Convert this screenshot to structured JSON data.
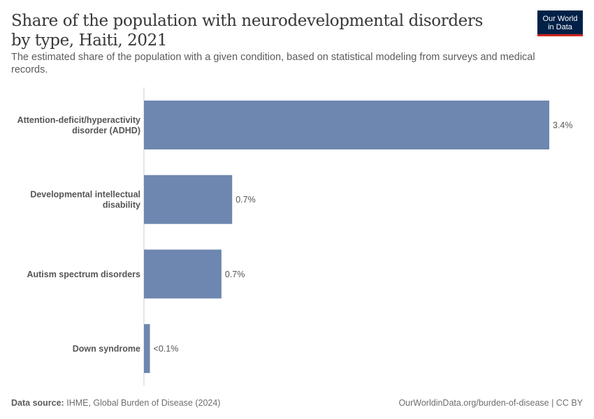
{
  "header": {
    "title": "Share of the population with neurodevelopmental disorders by type, Haiti, 2021",
    "subtitle": "The estimated share of the population with a given condition, based on statistical modeling from surveys and medical records.",
    "logo_line1": "Our World",
    "logo_line2": "in Data"
  },
  "colors": {
    "bar": "#6e87b0",
    "axis": "#cccccc",
    "logo_bg": "#002147",
    "logo_accent": "#ce261e"
  },
  "chart_data": {
    "type": "bar",
    "orientation": "horizontal",
    "categories": [
      [
        "Attention-deficit/hyperactivity",
        "disorder (ADHD)"
      ],
      [
        "Developmental intellectual",
        "disability"
      ],
      [
        "Autism spectrum disorders"
      ],
      [
        "Down syndrome"
      ]
    ],
    "values": [
      3.4,
      0.74,
      0.65,
      0.05
    ],
    "value_labels": [
      "3.4%",
      "0.7%",
      "0.7%",
      "<0.1%"
    ],
    "unit": "%",
    "xlim": [
      0,
      3.4
    ],
    "grid": false
  },
  "footer": {
    "source_label": "Data source:",
    "source_text": "IHME, Global Burden of Disease (2024)",
    "url": "OurWorldinData.org/burden-of-disease | CC BY"
  }
}
